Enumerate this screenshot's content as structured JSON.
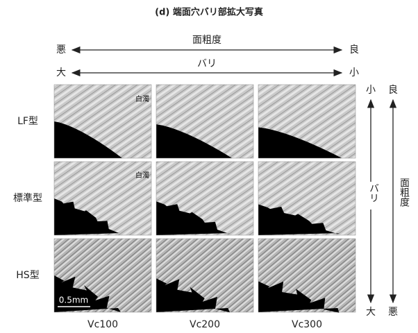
{
  "title": "(d) 端面穴バリ部拡大写真",
  "top_axes": [
    {
      "left": "悪",
      "label": "面粗度",
      "right": "良"
    },
    {
      "left": "大",
      "label": "バリ",
      "right": "小"
    }
  ],
  "right_axes": [
    {
      "top": "小",
      "label": "バリ",
      "bottom": "大"
    },
    {
      "top": "良",
      "label": "面粗度",
      "bottom": "悪"
    }
  ],
  "rows": [
    "LF型",
    "標準型",
    "HS型"
  ],
  "columns": [
    "Vc100",
    "Vc200",
    "Vc300"
  ],
  "annotations": [
    "白濁",
    "白濁"
  ],
  "scale_bar": "0.5mm"
}
